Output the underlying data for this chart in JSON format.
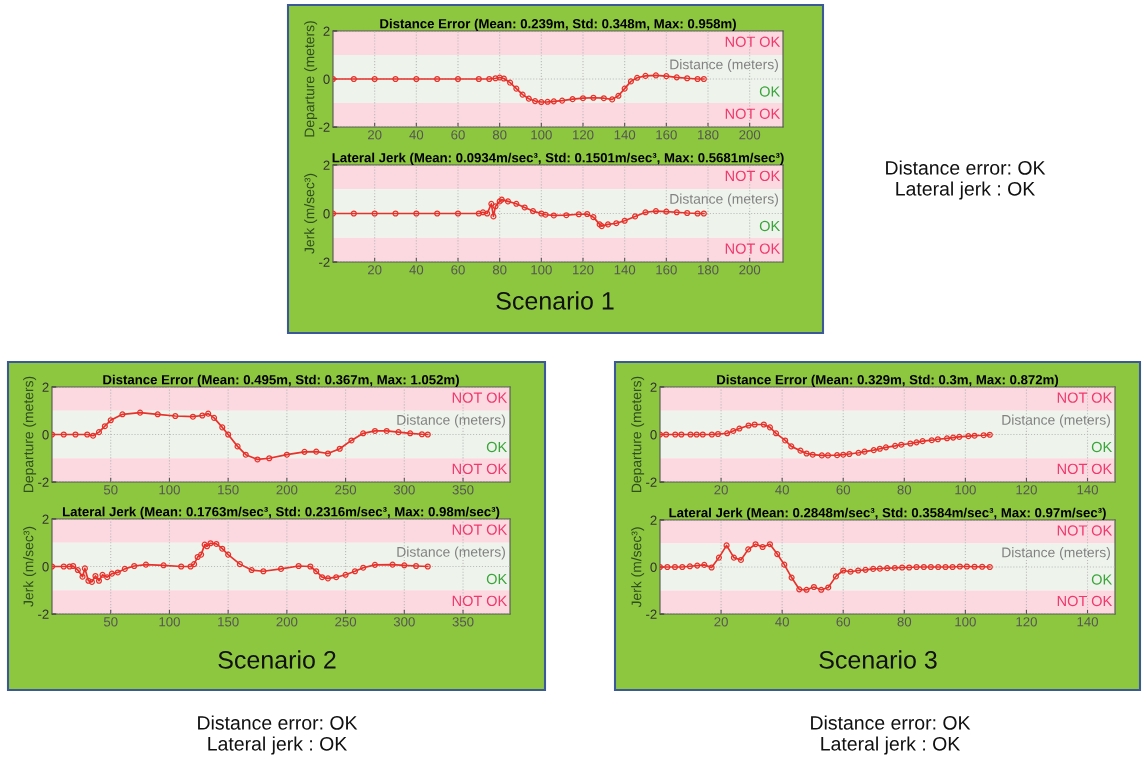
{
  "chart_data": [
    {
      "type": "line",
      "title": "Distance Error (Mean: 0.239m, Std: 0.348m, Max: 0.958m)",
      "xlabel": "Distance (meters)",
      "ylabel": "Departure (meters)",
      "xlim": [
        0,
        216
      ],
      "xticks": [
        20,
        40,
        60,
        80,
        100,
        120,
        140,
        160,
        180,
        200
      ],
      "ylim": [
        -2,
        2
      ],
      "yticks": [
        -2,
        0,
        2
      ],
      "grid": true,
      "marker": "circle",
      "line_style": "solid",
      "bands": [
        {
          "axis": "y",
          "from": 1,
          "to": 2,
          "label": "NOT OK",
          "color": "#fcd9e1"
        },
        {
          "axis": "y",
          "from": -1,
          "to": 1,
          "label": "OK",
          "color": "#eef4ec"
        },
        {
          "axis": "y",
          "from": -2,
          "to": -1,
          "label": "NOT OK",
          "color": "#fcd9e1"
        }
      ],
      "series": [
        {
          "color": "#e8312a",
          "x": [
            0,
            10,
            20,
            30,
            40,
            50,
            60,
            70,
            75,
            78,
            80,
            82,
            85,
            88,
            91,
            94,
            97,
            100,
            103,
            106,
            110,
            115,
            120,
            125,
            130,
            134,
            137,
            140,
            143,
            146,
            150,
            155,
            160,
            165,
            170,
            175,
            178
          ],
          "values": [
            0,
            0,
            0,
            0,
            0,
            0,
            0,
            0,
            0,
            0.03,
            0.06,
            0.02,
            -0.15,
            -0.4,
            -0.65,
            -0.82,
            -0.92,
            -0.96,
            -0.95,
            -0.93,
            -0.9,
            -0.84,
            -0.8,
            -0.78,
            -0.8,
            -0.85,
            -0.7,
            -0.4,
            -0.1,
            0.05,
            0.13,
            0.15,
            0.12,
            0.07,
            0.03,
            0,
            0
          ]
        }
      ]
    },
    {
      "type": "line",
      "title": "Lateral Jerk (Mean: 0.0934m/sec³, Std: 0.1501m/sec³, Max: 0.5681m/sec³)",
      "xlabel": "Distance (meters)",
      "ylabel": "Jerk (m/sec³)",
      "xlim": [
        0,
        216
      ],
      "xticks": [
        20,
        40,
        60,
        80,
        100,
        120,
        140,
        160,
        180,
        200
      ],
      "ylim": [
        -2,
        2
      ],
      "yticks": [
        -2,
        0,
        2
      ],
      "grid": true,
      "marker": "circle",
      "line_style": "solid",
      "bands": [
        {
          "axis": "y",
          "from": 1,
          "to": 2,
          "label": "NOT OK",
          "color": "#fcd9e1"
        },
        {
          "axis": "y",
          "from": -1,
          "to": 1,
          "label": "OK",
          "color": "#eef4ec"
        },
        {
          "axis": "y",
          "from": -2,
          "to": -1,
          "label": "NOT OK",
          "color": "#fcd9e1"
        }
      ],
      "annotations": [
        "Scenario 1",
        "Distance error: OK\nLateral jerk : OK"
      ],
      "series": [
        {
          "color": "#e8312a",
          "x": [
            0,
            10,
            20,
            30,
            40,
            50,
            60,
            70,
            72,
            74,
            76,
            77,
            78,
            80,
            81,
            84,
            88,
            92,
            96,
            100,
            102,
            106,
            112,
            118,
            122,
            125,
            128,
            129,
            132,
            136,
            140,
            145,
            150,
            155,
            160,
            165,
            170,
            175,
            178
          ],
          "values": [
            0,
            0,
            0,
            0,
            0,
            0,
            0,
            0,
            0.05,
            0,
            0.4,
            -0.12,
            0.3,
            0.5,
            0.57,
            0.5,
            0.4,
            0.25,
            0.1,
            0,
            -0.05,
            -0.08,
            -0.07,
            -0.03,
            -0.02,
            -0.15,
            -0.45,
            -0.52,
            -0.45,
            -0.4,
            -0.3,
            -0.12,
            0.05,
            0.1,
            0.08,
            0.05,
            0.02,
            0,
            0
          ]
        }
      ]
    },
    {
      "type": "line",
      "title": "Distance Error (Mean: 0.495m, Std: 0.367m, Max: 1.052m)",
      "xlabel": "Distance (meters)",
      "ylabel": "Departure (meters)",
      "xlim": [
        0,
        390
      ],
      "xticks": [
        50,
        100,
        150,
        200,
        250,
        300,
        350
      ],
      "ylim": [
        -2,
        2
      ],
      "yticks": [
        -2,
        0,
        2
      ],
      "grid": true,
      "marker": "circle",
      "line_style": "solid",
      "bands": [
        {
          "axis": "y",
          "from": 1,
          "to": 2,
          "label": "NOT OK",
          "color": "#fcd9e1"
        },
        {
          "axis": "y",
          "from": -1,
          "to": 1,
          "label": "OK",
          "color": "#eef4ec"
        },
        {
          "axis": "y",
          "from": -2,
          "to": -1,
          "label": "NOT OK",
          "color": "#fcd9e1"
        }
      ],
      "series": [
        {
          "color": "#e8312a",
          "x": [
            0,
            10,
            20,
            30,
            35,
            40,
            45,
            50,
            60,
            75,
            90,
            105,
            120,
            128,
            133,
            138,
            145,
            150,
            158,
            165,
            175,
            185,
            200,
            215,
            225,
            235,
            245,
            255,
            265,
            275,
            285,
            295,
            305,
            315,
            320
          ],
          "values": [
            0,
            0,
            0,
            0,
            -0.05,
            0.1,
            0.35,
            0.6,
            0.85,
            0.92,
            0.85,
            0.78,
            0.75,
            0.8,
            0.88,
            0.7,
            0.3,
            0,
            -0.5,
            -0.85,
            -1.05,
            -1.0,
            -0.85,
            -0.73,
            -0.72,
            -0.8,
            -0.6,
            -0.25,
            0.05,
            0.15,
            0.15,
            0.1,
            0.05,
            0.01,
            0
          ]
        }
      ]
    },
    {
      "type": "line",
      "title": "Lateral Jerk (Mean: 0.1763m/sec³, Std: 0.2316m/sec³, Max: 0.98m/sec³)",
      "xlabel": "Distance (meters)",
      "ylabel": "Jerk (m/sec³)",
      "xlim": [
        0,
        390
      ],
      "xticks": [
        50,
        100,
        150,
        200,
        250,
        300,
        350
      ],
      "ylim": [
        -2,
        2
      ],
      "yticks": [
        -2,
        0,
        2
      ],
      "grid": true,
      "marker": "circle",
      "line_style": "solid",
      "bands": [
        {
          "axis": "y",
          "from": 1,
          "to": 2,
          "label": "NOT OK",
          "color": "#fcd9e1"
        },
        {
          "axis": "y",
          "from": -1,
          "to": 1,
          "label": "OK",
          "color": "#eef4ec"
        },
        {
          "axis": "y",
          "from": -2,
          "to": -1,
          "label": "NOT OK",
          "color": "#fcd9e1"
        }
      ],
      "annotations": [
        "Scenario 2",
        "Distance error: OK\nLateral jerk : OK"
      ],
      "series": [
        {
          "color": "#e8312a",
          "x": [
            0,
            10,
            15,
            18,
            22,
            26,
            28,
            31,
            34,
            37,
            40,
            43,
            47,
            51,
            56,
            62,
            70,
            80,
            95,
            110,
            118,
            121,
            124,
            127,
            130,
            132,
            135,
            140,
            145,
            150,
            160,
            170,
            180,
            195,
            210,
            220,
            225,
            230,
            235,
            242,
            250,
            258,
            265,
            275,
            290,
            300,
            310,
            320
          ],
          "values": [
            0,
            0,
            0,
            0.02,
            -0.15,
            -0.43,
            -0.08,
            -0.6,
            -0.65,
            -0.4,
            -0.6,
            -0.35,
            -0.45,
            -0.3,
            -0.25,
            -0.1,
            0.02,
            0.08,
            0.05,
            0,
            0,
            0.1,
            0.4,
            0.5,
            0.92,
            0.85,
            0.98,
            0.95,
            0.75,
            0.5,
            0.1,
            -0.15,
            -0.2,
            -0.1,
            0.02,
            0,
            -0.2,
            -0.45,
            -0.5,
            -0.45,
            -0.35,
            -0.2,
            -0.05,
            0.07,
            0.08,
            0.05,
            0.02,
            0
          ]
        }
      ]
    },
    {
      "type": "line",
      "title": "Distance Error (Mean: 0.329m, Std: 0.3m, Max: 0.872m)",
      "xlabel": "Distance (meters)",
      "ylabel": "Departure (meters)",
      "xlim": [
        0,
        149
      ],
      "xticks": [
        20,
        40,
        60,
        80,
        100,
        120,
        140
      ],
      "ylim": [
        -2,
        2
      ],
      "yticks": [
        -2,
        0,
        2
      ],
      "grid": true,
      "marker": "circle",
      "line_style": "solid",
      "bands": [
        {
          "axis": "y",
          "from": 1,
          "to": 2,
          "label": "NOT OK",
          "color": "#fcd9e1"
        },
        {
          "axis": "y",
          "from": -1,
          "to": 1,
          "label": "OK",
          "color": "#eef4ec"
        },
        {
          "axis": "y",
          "from": -2,
          "to": -1,
          "label": "NOT OK",
          "color": "#fcd9e1"
        }
      ],
      "series": [
        {
          "color": "#e8312a",
          "x": [
            0,
            2,
            5,
            7,
            10,
            12,
            14,
            17,
            19,
            22,
            24,
            26,
            29,
            31,
            34,
            36,
            38,
            41,
            43,
            46,
            48,
            50,
            53,
            55,
            58,
            60,
            62,
            65,
            67,
            70,
            72,
            74,
            77,
            79,
            82,
            84,
            86,
            89,
            91,
            94,
            96,
            98,
            101,
            103,
            106,
            108
          ],
          "values": [
            0,
            0,
            0,
            0,
            0,
            0,
            0,
            0,
            0.02,
            0.05,
            0.15,
            0.25,
            0.38,
            0.42,
            0.42,
            0.3,
            0.05,
            -0.25,
            -0.5,
            -0.68,
            -0.8,
            -0.85,
            -0.88,
            -0.88,
            -0.87,
            -0.85,
            -0.82,
            -0.77,
            -0.72,
            -0.66,
            -0.6,
            -0.54,
            -0.48,
            -0.43,
            -0.38,
            -0.33,
            -0.28,
            -0.24,
            -0.2,
            -0.16,
            -0.13,
            -0.1,
            -0.07,
            -0.05,
            -0.03,
            -0.01
          ]
        }
      ]
    },
    {
      "type": "line",
      "title": "Lateral Jerk (Mean: 0.2848m/sec³, Std: 0.3584m/sec³, Max: 0.97m/sec³)",
      "xlabel": "Distance (meters)",
      "ylabel": "Jerk (m/sec³)",
      "xlim": [
        0,
        149
      ],
      "xticks": [
        20,
        40,
        60,
        80,
        100,
        120,
        140
      ],
      "ylim": [
        -2,
        2
      ],
      "yticks": [
        -2,
        0,
        2
      ],
      "grid": true,
      "marker": "circle",
      "line_style": "solid",
      "bands": [
        {
          "axis": "y",
          "from": 1,
          "to": 2,
          "label": "NOT OK",
          "color": "#fcd9e1"
        },
        {
          "axis": "y",
          "from": -1,
          "to": 1,
          "label": "OK",
          "color": "#eef4ec"
        },
        {
          "axis": "y",
          "from": -2,
          "to": -1,
          "label": "NOT OK",
          "color": "#fcd9e1"
        }
      ],
      "annotations": [
        "Scenario 3",
        "Distance error: OK\nLateral jerk : OK"
      ],
      "series": [
        {
          "color": "#e8312a",
          "x": [
            0,
            2.4,
            4.9,
            7.3,
            9.8,
            12.2,
            14.5,
            16.9,
            19.3,
            21.8,
            24.2,
            26.5,
            28.9,
            31.3,
            33.6,
            36,
            38.4,
            40.7,
            43.1,
            45.6,
            48,
            50.4,
            52.8,
            55.1,
            57.6,
            60,
            62.4,
            64.9,
            67.3,
            69.8,
            72,
            74.4,
            76.9,
            79.3,
            81.6,
            84,
            86.4,
            88.7,
            91.1,
            93.5,
            95.8,
            98.2,
            100.5,
            103,
            105.5,
            108
          ],
          "values": [
            0,
            0,
            0,
            0,
            0.03,
            0.06,
            0.09,
            -0.02,
            0.4,
            0.92,
            0.4,
            0.3,
            0.75,
            0.97,
            0.85,
            0.97,
            0.55,
            0.1,
            -0.45,
            -0.95,
            -0.97,
            -0.85,
            -0.97,
            -0.87,
            -0.4,
            -0.15,
            -0.2,
            -0.15,
            -0.12,
            -0.08,
            -0.07,
            -0.05,
            -0.04,
            -0.02,
            -0.02,
            0,
            0,
            0,
            0,
            0,
            0,
            0.02,
            0.02,
            0.01,
            0.01,
            0
          ]
        }
      ]
    }
  ]
}
